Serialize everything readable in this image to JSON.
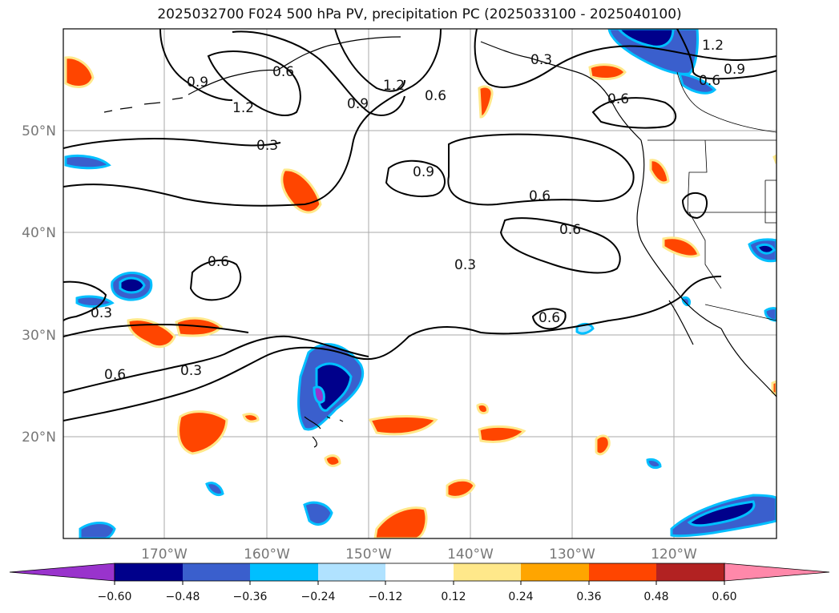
{
  "title": "2025032700 F024 500 hPa PV, precipitation PC (2025033100 - 2025040100)",
  "axes": {
    "lat_labels": [
      "50°N",
      "40°N",
      "30°N",
      "20°N"
    ],
    "lon_labels": [
      "170°W",
      "160°W",
      "150°W",
      "140°W",
      "130°W",
      "120°W"
    ]
  },
  "contour_labels": [
    "0.3",
    "0.6",
    "0.9",
    "1.2"
  ],
  "colorbar": {
    "ticks": [
      "−0.60",
      "−0.48",
      "−0.36",
      "−0.24",
      "−0.12",
      "0.12",
      "0.24",
      "0.36",
      "0.48",
      "0.60"
    ],
    "colors": [
      "#9933cc",
      "#00008b",
      "#3a5fcd",
      "#00bfff",
      "#b0e2ff",
      "#ffffff",
      "#ffe88a",
      "#ffa500",
      "#ff4500",
      "#b22222",
      "#ff88aa"
    ]
  },
  "colors": {
    "land_outline": "#000000",
    "grid": "#aaaaaa",
    "contour": "#000000"
  }
}
